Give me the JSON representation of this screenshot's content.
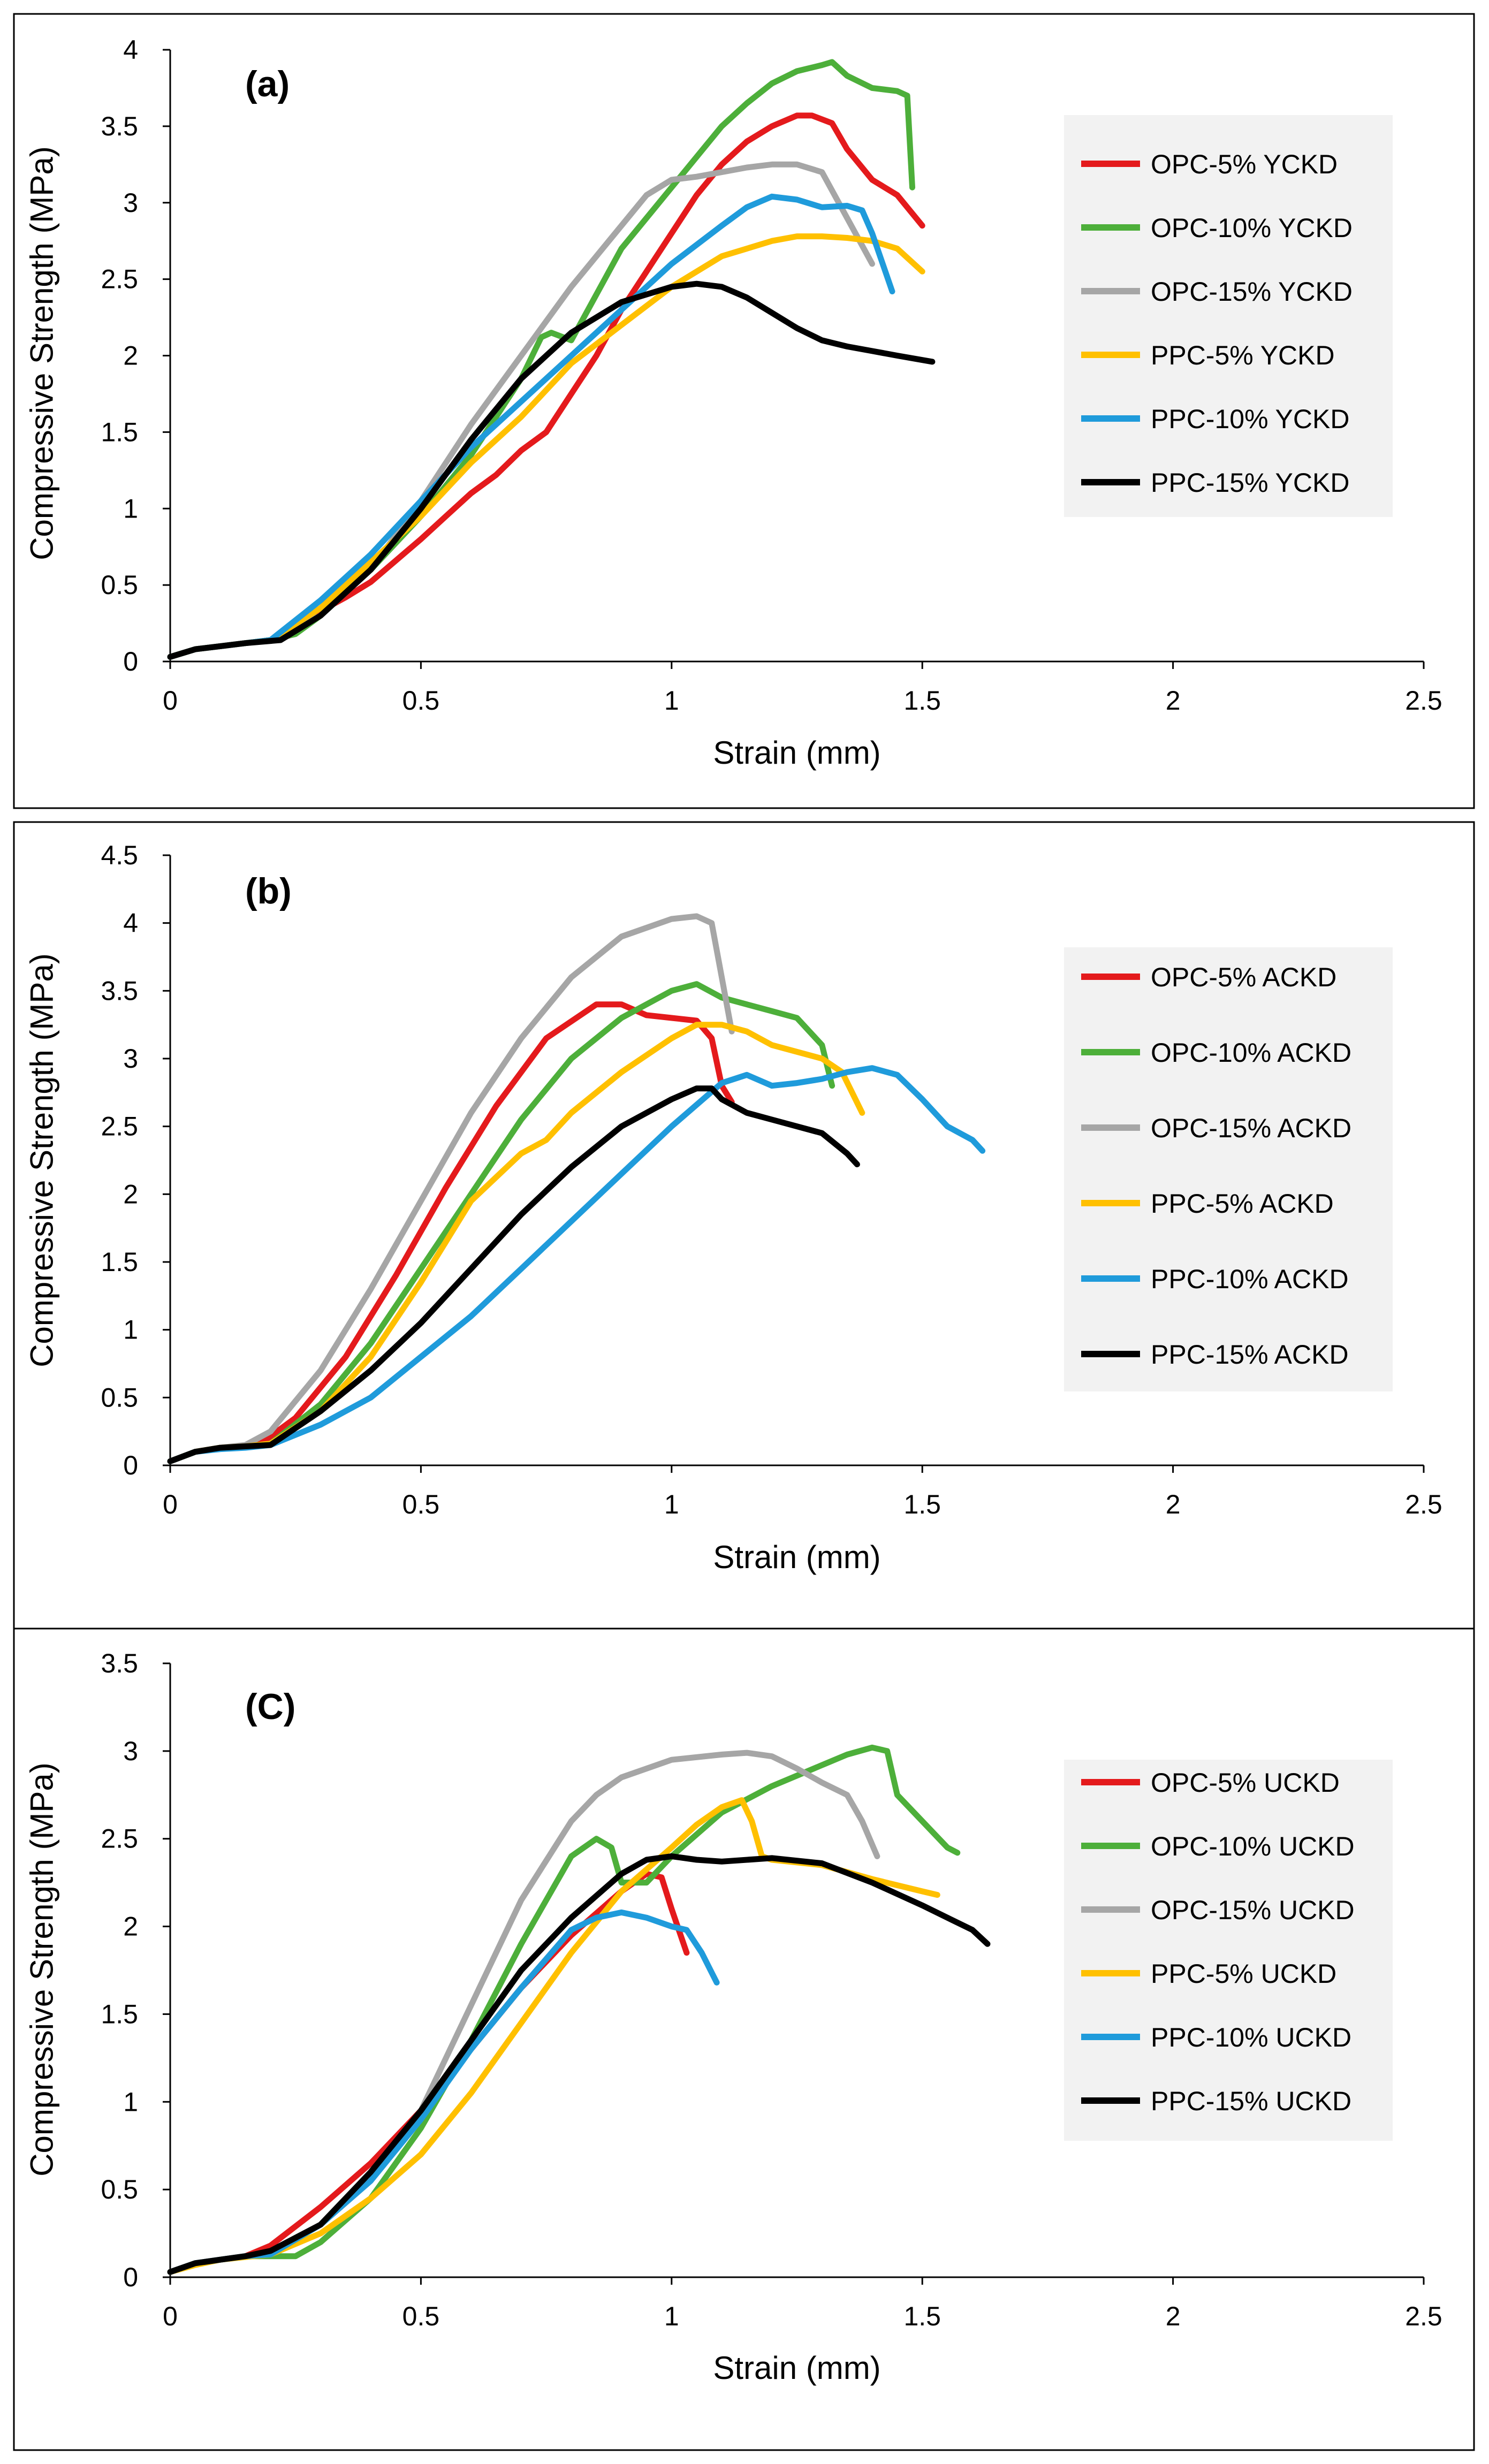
{
  "figure": {
    "panels": 3
  },
  "colors": {
    "red": "#E41A1C",
    "green": "#4DAF3A",
    "gray": "#A6A6A6",
    "yellow": "#FFC000",
    "blue": "#1F9BDB",
    "black": "#000000",
    "legend_bg": "#F2F2F2",
    "axis": "#000000",
    "frame": "#000000"
  },
  "chart_data": [
    {
      "type": "line",
      "panel_label": "(a)",
      "xlabel": "Strain (mm)",
      "ylabel": "Compressive Strength (MPa)",
      "xlim": [
        0,
        2.5
      ],
      "ylim": [
        0,
        4
      ],
      "xticks": [
        0,
        0.5,
        1,
        1.5,
        2,
        2.5
      ],
      "xtick_labels": [
        "0",
        "0.5",
        "1",
        "1.5",
        "2",
        "2.5"
      ],
      "yticks": [
        0,
        0.5,
        1,
        1.5,
        2,
        2.5,
        3,
        3.5,
        4
      ],
      "ytick_labels": [
        "0",
        "0.5",
        "1",
        "1.5",
        "2",
        "2.5",
        "3",
        "3.5",
        "4"
      ],
      "grid": false,
      "legend_position": "right",
      "series": [
        {
          "name": "OPC-5% YCKD",
          "color_key": "red",
          "x": [
            0,
            0.05,
            0.1,
            0.15,
            0.2,
            0.25,
            0.3,
            0.35,
            0.4,
            0.45,
            0.5,
            0.55,
            0.6,
            0.65,
            0.7,
            0.75,
            0.8,
            0.85,
            0.9,
            0.95,
            1.0,
            1.05,
            1.1,
            1.15,
            1.2,
            1.25,
            1.28,
            1.32,
            1.35,
            1.4,
            1.45,
            1.5
          ],
          "y": [
            0.03,
            0.08,
            0.1,
            0.12,
            0.14,
            0.22,
            0.33,
            0.42,
            0.52,
            0.66,
            0.8,
            0.95,
            1.1,
            1.22,
            1.38,
            1.5,
            1.75,
            2.0,
            2.3,
            2.55,
            2.8,
            3.05,
            3.25,
            3.4,
            3.5,
            3.57,
            3.57,
            3.52,
            3.35,
            3.15,
            3.05,
            2.85
          ]
        },
        {
          "name": "OPC-10% YCKD",
          "color_key": "green",
          "x": [
            0,
            0.05,
            0.1,
            0.15,
            0.2,
            0.25,
            0.3,
            0.4,
            0.5,
            0.6,
            0.7,
            0.74,
            0.76,
            0.8,
            0.85,
            0.9,
            1.0,
            1.1,
            1.15,
            1.2,
            1.25,
            1.3,
            1.32,
            1.35,
            1.4,
            1.45,
            1.47,
            1.48
          ],
          "y": [
            0.03,
            0.08,
            0.1,
            0.12,
            0.14,
            0.18,
            0.3,
            0.6,
            0.95,
            1.35,
            1.85,
            2.12,
            2.15,
            2.1,
            2.4,
            2.7,
            3.1,
            3.5,
            3.65,
            3.78,
            3.86,
            3.9,
            3.92,
            3.83,
            3.75,
            3.73,
            3.7,
            3.1
          ]
        },
        {
          "name": "OPC-15% YCKD",
          "color_key": "gray",
          "x": [
            0,
            0.05,
            0.1,
            0.15,
            0.2,
            0.3,
            0.4,
            0.5,
            0.6,
            0.7,
            0.8,
            0.9,
            0.95,
            1.0,
            1.05,
            1.1,
            1.15,
            1.2,
            1.25,
            1.3,
            1.35,
            1.4
          ],
          "y": [
            0.03,
            0.08,
            0.1,
            0.12,
            0.14,
            0.3,
            0.6,
            1.05,
            1.55,
            2.0,
            2.45,
            2.85,
            3.05,
            3.15,
            3.17,
            3.2,
            3.23,
            3.25,
            3.25,
            3.2,
            2.9,
            2.6
          ]
        },
        {
          "name": "PPC-5% YCKD",
          "color_key": "yellow",
          "x": [
            0,
            0.05,
            0.1,
            0.15,
            0.2,
            0.3,
            0.4,
            0.5,
            0.6,
            0.7,
            0.8,
            0.9,
            1.0,
            1.1,
            1.2,
            1.25,
            1.3,
            1.35,
            1.4,
            1.45,
            1.5
          ],
          "y": [
            0.03,
            0.08,
            0.1,
            0.12,
            0.14,
            0.35,
            0.65,
            0.95,
            1.3,
            1.6,
            1.95,
            2.2,
            2.45,
            2.65,
            2.75,
            2.78,
            2.78,
            2.77,
            2.75,
            2.7,
            2.55
          ]
        },
        {
          "name": "PPC-10% YCKD",
          "color_key": "blue",
          "x": [
            0,
            0.05,
            0.1,
            0.15,
            0.2,
            0.3,
            0.4,
            0.5,
            0.6,
            0.7,
            0.8,
            0.9,
            1.0,
            1.1,
            1.15,
            1.2,
            1.25,
            1.3,
            1.35,
            1.38,
            1.4,
            1.44
          ],
          "y": [
            0.03,
            0.08,
            0.1,
            0.12,
            0.14,
            0.4,
            0.7,
            1.05,
            1.4,
            1.7,
            2.0,
            2.3,
            2.6,
            2.85,
            2.97,
            3.04,
            3.02,
            2.97,
            2.98,
            2.95,
            2.8,
            2.42
          ]
        },
        {
          "name": "PPC-15% YCKD",
          "color_key": "black",
          "x": [
            0,
            0.05,
            0.1,
            0.15,
            0.22,
            0.3,
            0.4,
            0.5,
            0.6,
            0.7,
            0.8,
            0.9,
            1.0,
            1.05,
            1.1,
            1.15,
            1.2,
            1.25,
            1.3,
            1.35,
            1.4,
            1.45,
            1.52
          ],
          "y": [
            0.03,
            0.08,
            0.1,
            0.12,
            0.14,
            0.3,
            0.6,
            1.0,
            1.45,
            1.85,
            2.15,
            2.35,
            2.45,
            2.47,
            2.45,
            2.38,
            2.28,
            2.18,
            2.1,
            2.06,
            2.03,
            2.0,
            1.96
          ]
        }
      ]
    },
    {
      "type": "line",
      "panel_label": "(b)",
      "xlabel": "Strain (mm)",
      "ylabel": "Compressive Strength (MPa)",
      "xlim": [
        0,
        2.5
      ],
      "ylim": [
        0,
        4.5
      ],
      "xticks": [
        0,
        0.5,
        1,
        1.5,
        2,
        2.5
      ],
      "xtick_labels": [
        "0",
        "0.5",
        "1",
        "1.5",
        "2",
        "2.5"
      ],
      "yticks": [
        0,
        0.5,
        1,
        1.5,
        2,
        2.5,
        3,
        3.5,
        4,
        4.5
      ],
      "ytick_labels": [
        "0",
        "0.5",
        "1",
        "1.5",
        "2",
        "2.5",
        "3",
        "3.5",
        "4",
        "4.5"
      ],
      "grid": false,
      "legend_position": "right",
      "series": [
        {
          "name": "OPC-5% ACKD",
          "color_key": "red",
          "x": [
            0,
            0.05,
            0.1,
            0.15,
            0.18,
            0.25,
            0.35,
            0.45,
            0.55,
            0.65,
            0.75,
            0.85,
            0.9,
            0.95,
            1.0,
            1.05,
            1.08,
            1.1,
            1.12
          ],
          "y": [
            0.03,
            0.1,
            0.13,
            0.14,
            0.16,
            0.35,
            0.8,
            1.4,
            2.05,
            2.65,
            3.15,
            3.4,
            3.4,
            3.32,
            3.3,
            3.28,
            3.15,
            2.8,
            2.68
          ]
        },
        {
          "name": "OPC-10% ACKD",
          "color_key": "green",
          "x": [
            0,
            0.05,
            0.1,
            0.15,
            0.2,
            0.3,
            0.4,
            0.5,
            0.6,
            0.7,
            0.8,
            0.9,
            1.0,
            1.05,
            1.1,
            1.15,
            1.2,
            1.25,
            1.3,
            1.32
          ],
          "y": [
            0.03,
            0.1,
            0.13,
            0.14,
            0.16,
            0.45,
            0.9,
            1.45,
            2.0,
            2.55,
            3.0,
            3.3,
            3.5,
            3.55,
            3.45,
            3.4,
            3.35,
            3.3,
            3.1,
            2.8
          ]
        },
        {
          "name": "OPC-15% ACKD",
          "color_key": "gray",
          "x": [
            0,
            0.05,
            0.1,
            0.15,
            0.2,
            0.3,
            0.4,
            0.5,
            0.6,
            0.7,
            0.8,
            0.9,
            1.0,
            1.05,
            1.08,
            1.1,
            1.12
          ],
          "y": [
            0.03,
            0.1,
            0.13,
            0.15,
            0.25,
            0.7,
            1.3,
            1.95,
            2.6,
            3.15,
            3.6,
            3.9,
            4.03,
            4.05,
            4.0,
            3.6,
            3.2
          ]
        },
        {
          "name": "PPC-5% ACKD",
          "color_key": "yellow",
          "x": [
            0,
            0.05,
            0.1,
            0.15,
            0.2,
            0.3,
            0.4,
            0.5,
            0.6,
            0.7,
            0.75,
            0.8,
            0.9,
            1.0,
            1.05,
            1.1,
            1.15,
            1.2,
            1.3,
            1.34,
            1.38
          ],
          "y": [
            0.03,
            0.1,
            0.13,
            0.14,
            0.16,
            0.4,
            0.8,
            1.35,
            1.95,
            2.3,
            2.4,
            2.6,
            2.9,
            3.15,
            3.25,
            3.25,
            3.2,
            3.1,
            3.0,
            2.9,
            2.6
          ]
        },
        {
          "name": "PPC-10% ACKD",
          "color_key": "blue",
          "x": [
            0,
            0.05,
            0.1,
            0.15,
            0.2,
            0.3,
            0.4,
            0.5,
            0.6,
            0.7,
            0.8,
            0.9,
            1.0,
            1.1,
            1.15,
            1.2,
            1.25,
            1.3,
            1.35,
            1.4,
            1.45,
            1.5,
            1.55,
            1.6,
            1.62
          ],
          "y": [
            0.03,
            0.1,
            0.12,
            0.13,
            0.15,
            0.3,
            0.5,
            0.8,
            1.1,
            1.45,
            1.8,
            2.15,
            2.5,
            2.82,
            2.88,
            2.8,
            2.82,
            2.85,
            2.9,
            2.93,
            2.88,
            2.7,
            2.5,
            2.4,
            2.32
          ]
        },
        {
          "name": "PPC-15% ACKD",
          "color_key": "black",
          "x": [
            0,
            0.05,
            0.1,
            0.15,
            0.2,
            0.3,
            0.4,
            0.5,
            0.6,
            0.7,
            0.8,
            0.9,
            1.0,
            1.05,
            1.08,
            1.1,
            1.15,
            1.2,
            1.3,
            1.35,
            1.37
          ],
          "y": [
            0.03,
            0.1,
            0.13,
            0.14,
            0.15,
            0.4,
            0.7,
            1.05,
            1.45,
            1.85,
            2.2,
            2.5,
            2.7,
            2.78,
            2.78,
            2.7,
            2.6,
            2.55,
            2.45,
            2.3,
            2.22
          ]
        }
      ]
    },
    {
      "type": "line",
      "panel_label": "(C)",
      "xlabel": "Strain (mm)",
      "ylabel": "Compressive Strength (MPa)",
      "xlim": [
        0,
        2.5
      ],
      "ylim": [
        0,
        3.5
      ],
      "xticks": [
        0,
        0.5,
        1,
        1.5,
        2,
        2.5
      ],
      "xtick_labels": [
        "0",
        "0.5",
        "1",
        "1.5",
        "2",
        "2.5"
      ],
      "yticks": [
        0,
        0.5,
        1,
        1.5,
        2,
        2.5,
        3,
        3.5
      ],
      "ytick_labels": [
        "0",
        "0.5",
        "1",
        "1.5",
        "2",
        "2.5",
        "3",
        "3.5"
      ],
      "grid": false,
      "legend_position": "right",
      "series": [
        {
          "name": "OPC-5% UCKD",
          "color_key": "red",
          "x": [
            0,
            0.05,
            0.1,
            0.15,
            0.2,
            0.3,
            0.4,
            0.5,
            0.6,
            0.7,
            0.8,
            0.9,
            0.95,
            0.98,
            1.0,
            1.03
          ],
          "y": [
            0.03,
            0.08,
            0.1,
            0.12,
            0.18,
            0.4,
            0.65,
            0.95,
            1.3,
            1.65,
            1.95,
            2.2,
            2.3,
            2.28,
            2.1,
            1.85
          ]
        },
        {
          "name": "OPC-10% UCKD",
          "color_key": "green",
          "x": [
            0,
            0.05,
            0.1,
            0.15,
            0.2,
            0.25,
            0.3,
            0.4,
            0.5,
            0.6,
            0.7,
            0.8,
            0.85,
            0.88,
            0.9,
            0.95,
            1.0,
            1.1,
            1.2,
            1.3,
            1.35,
            1.4,
            1.43,
            1.45,
            1.5,
            1.55,
            1.57
          ],
          "y": [
            0.03,
            0.08,
            0.1,
            0.12,
            0.12,
            0.12,
            0.2,
            0.45,
            0.85,
            1.35,
            1.9,
            2.4,
            2.5,
            2.45,
            2.25,
            2.25,
            2.4,
            2.65,
            2.8,
            2.92,
            2.98,
            3.02,
            3.0,
            2.75,
            2.6,
            2.45,
            2.42
          ]
        },
        {
          "name": "OPC-15% UCKD",
          "color_key": "gray",
          "x": [
            0,
            0.05,
            0.1,
            0.15,
            0.2,
            0.3,
            0.4,
            0.5,
            0.6,
            0.7,
            0.8,
            0.85,
            0.9,
            1.0,
            1.1,
            1.15,
            1.2,
            1.25,
            1.3,
            1.35,
            1.38,
            1.41
          ],
          "y": [
            0.03,
            0.08,
            0.1,
            0.12,
            0.14,
            0.3,
            0.55,
            0.95,
            1.55,
            2.15,
            2.6,
            2.75,
            2.85,
            2.95,
            2.98,
            2.99,
            2.97,
            2.9,
            2.82,
            2.75,
            2.6,
            2.4
          ]
        },
        {
          "name": "PPC-5% UCKD",
          "color_key": "yellow",
          "x": [
            0,
            0.05,
            0.1,
            0.2,
            0.3,
            0.4,
            0.5,
            0.6,
            0.7,
            0.8,
            0.9,
            1.0,
            1.05,
            1.1,
            1.14,
            1.16,
            1.18,
            1.2,
            1.3,
            1.4,
            1.5,
            1.53
          ],
          "y": [
            0.03,
            0.07,
            0.1,
            0.13,
            0.25,
            0.45,
            0.7,
            1.05,
            1.45,
            1.85,
            2.2,
            2.45,
            2.58,
            2.68,
            2.72,
            2.6,
            2.4,
            2.38,
            2.35,
            2.27,
            2.2,
            2.18
          ]
        },
        {
          "name": "PPC-10% UCKD",
          "color_key": "blue",
          "x": [
            0,
            0.05,
            0.1,
            0.15,
            0.2,
            0.3,
            0.4,
            0.5,
            0.6,
            0.7,
            0.8,
            0.85,
            0.9,
            0.95,
            1.0,
            1.03,
            1.06,
            1.09
          ],
          "y": [
            0.03,
            0.08,
            0.1,
            0.12,
            0.13,
            0.3,
            0.55,
            0.9,
            1.3,
            1.65,
            1.98,
            2.05,
            2.08,
            2.05,
            2.0,
            1.98,
            1.85,
            1.68
          ]
        },
        {
          "name": "PPC-15% UCKD",
          "color_key": "black",
          "x": [
            0,
            0.05,
            0.1,
            0.15,
            0.2,
            0.3,
            0.4,
            0.5,
            0.6,
            0.7,
            0.8,
            0.9,
            0.95,
            1.0,
            1.05,
            1.1,
            1.2,
            1.3,
            1.4,
            1.5,
            1.55,
            1.6,
            1.63
          ],
          "y": [
            0.03,
            0.08,
            0.1,
            0.12,
            0.15,
            0.3,
            0.6,
            0.95,
            1.35,
            1.75,
            2.05,
            2.3,
            2.38,
            2.4,
            2.38,
            2.37,
            2.39,
            2.36,
            2.25,
            2.12,
            2.05,
            1.98,
            1.9
          ]
        }
      ]
    }
  ]
}
